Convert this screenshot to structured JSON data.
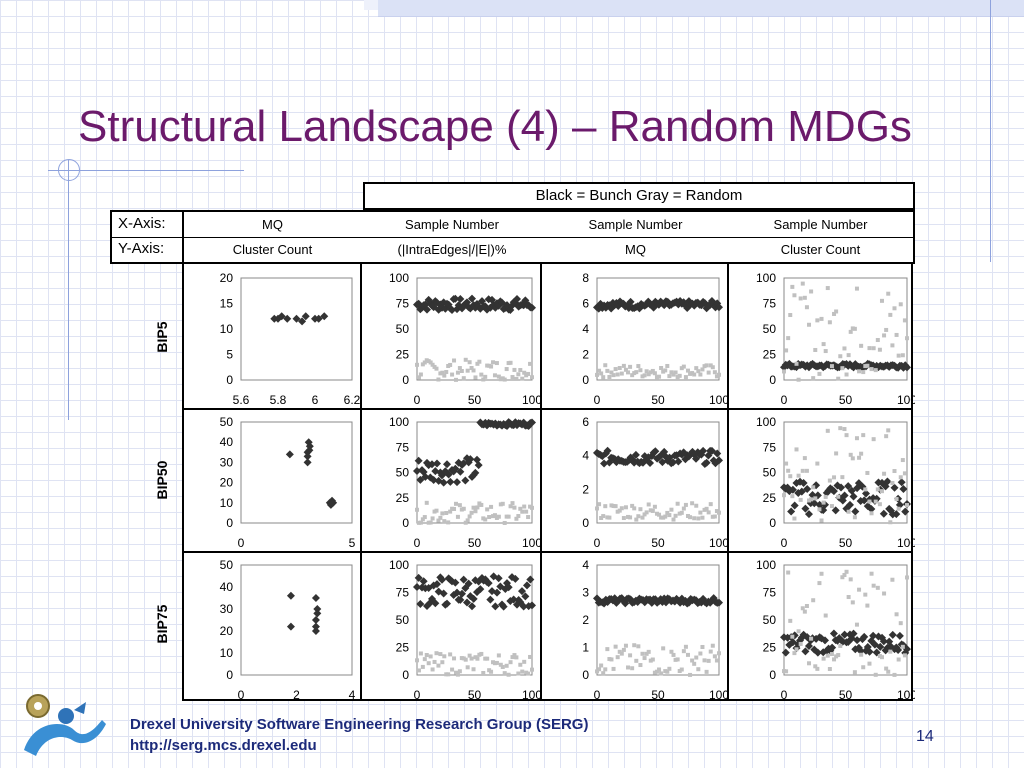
{
  "title": "Structural Landscape (4) – Random MDGs",
  "legend": "Black = Bunch    Gray = Random",
  "axis_table": {
    "x_label": "X-Axis:",
    "y_label": "Y-Axis:",
    "x_values": [
      "MQ",
      "Sample Number",
      "Sample Number",
      "Sample Number"
    ],
    "y_values": [
      "Cluster Count",
      "(|IntraEdges|/|E|)%",
      "MQ",
      "Cluster Count"
    ]
  },
  "row_labels": [
    "BIP5",
    "BIP50",
    "BIP75"
  ],
  "footer": {
    "line1": "Drexel University Software Engineering Research Group (SERG)",
    "line2": "http://serg.mcs.drexel.edu",
    "page": "14"
  },
  "colors": {
    "title": "#6b1a6b",
    "footer": "#1c2a7a",
    "bunch": "#333333",
    "random": "#c0c0c0"
  },
  "chart_data": [
    {
      "type": "scatter",
      "row": "BIP5",
      "col": 0,
      "xlim": [
        5.6,
        6.2
      ],
      "ylim": [
        0,
        20
      ],
      "xticks": [
        "5.6",
        "5.8",
        "6",
        "6.2"
      ],
      "yticks": [
        "20",
        "15",
        "10",
        "5",
        "0"
      ],
      "series": [
        {
          "name": "Bunch",
          "points": [
            [
              5.78,
              12
            ],
            [
              5.8,
              12
            ],
            [
              5.82,
              12.5
            ],
            [
              5.85,
              12
            ],
            [
              5.9,
              12
            ],
            [
              5.93,
              11.5
            ],
            [
              5.95,
              12.5
            ],
            [
              6.0,
              12
            ],
            [
              6.02,
              12
            ],
            [
              6.05,
              12.5
            ]
          ]
        }
      ]
    },
    {
      "type": "scatter",
      "row": "BIP5",
      "col": 1,
      "xlim": [
        0,
        100
      ],
      "ylim": [
        0,
        100
      ],
      "xticks": [
        "0",
        "50",
        "100"
      ],
      "yticks": [
        "100",
        "75",
        "50",
        "25",
        "0"
      ],
      "series": [
        {
          "name": "Bunch",
          "band": [
            68,
            80
          ]
        },
        {
          "name": "Random",
          "band": [
            0,
            20
          ]
        }
      ]
    },
    {
      "type": "scatter",
      "row": "BIP5",
      "col": 2,
      "xlim": [
        0,
        100
      ],
      "ylim": [
        0,
        8
      ],
      "xticks": [
        "0",
        "50",
        "100"
      ],
      "yticks": [
        "8",
        "6",
        "4",
        "2",
        "0"
      ],
      "series": [
        {
          "name": "Bunch",
          "band": [
            5.6,
            6.2
          ]
        },
        {
          "name": "Random",
          "band": [
            0.2,
            1.2
          ]
        }
      ]
    },
    {
      "type": "scatter",
      "row": "BIP5",
      "col": 3,
      "xlim": [
        0,
        100
      ],
      "ylim": [
        0,
        100
      ],
      "xticks": [
        "0",
        "50",
        "100"
      ],
      "yticks": [
        "100",
        "75",
        "50",
        "25",
        "0"
      ],
      "series": [
        {
          "name": "Bunch",
          "band": [
            12,
            16
          ]
        },
        {
          "name": "Random",
          "band": [
            0,
            95
          ]
        }
      ]
    },
    {
      "type": "scatter",
      "row": "BIP50",
      "col": 0,
      "xlim": [
        0,
        5
      ],
      "ylim": [
        0,
        50
      ],
      "xticks": [
        "0",
        "5"
      ],
      "yticks": [
        "50",
        "40",
        "30",
        "20",
        "10",
        "0"
      ],
      "series": [
        {
          "name": "Bunch",
          "points": [
            [
              2.2,
              34
            ],
            [
              3.0,
              30
            ],
            [
              3.0,
              35
            ],
            [
              3.05,
              40
            ],
            [
              3.1,
              38
            ],
            [
              3.0,
              33
            ],
            [
              3.08,
              36
            ],
            [
              4.0,
              10
            ],
            [
              4.1,
              11
            ],
            [
              4.05,
              9
            ],
            [
              4.15,
              10
            ]
          ]
        }
      ]
    },
    {
      "type": "scatter",
      "row": "BIP50",
      "col": 1,
      "xlim": [
        0,
        100
      ],
      "ylim": [
        0,
        100
      ],
      "xticks": [
        "0",
        "50",
        "100"
      ],
      "yticks": [
        "100",
        "75",
        "50",
        "25",
        "0"
      ],
      "series": [
        {
          "name": "Bunch",
          "band": [
            40,
            65
          ],
          "band2": [
            96,
            100
          ]
        },
        {
          "name": "Random",
          "band": [
            0,
            20
          ]
        }
      ]
    },
    {
      "type": "scatter",
      "row": "BIP50",
      "col": 2,
      "xlim": [
        0,
        100
      ],
      "ylim": [
        0,
        6
      ],
      "xticks": [
        "0",
        "50",
        "100"
      ],
      "yticks": [
        "6",
        "4",
        "2",
        "0"
      ],
      "series": [
        {
          "name": "Bunch",
          "band": [
            3.5,
            4.3
          ]
        },
        {
          "name": "Random",
          "band": [
            0.2,
            1.2
          ]
        }
      ]
    },
    {
      "type": "scatter",
      "row": "BIP50",
      "col": 3,
      "xlim": [
        0,
        100
      ],
      "ylim": [
        0,
        100
      ],
      "xticks": [
        "0",
        "50",
        "100"
      ],
      "yticks": [
        "100",
        "75",
        "50",
        "25",
        "0"
      ],
      "series": [
        {
          "name": "Bunch",
          "band": [
            8,
            42
          ]
        },
        {
          "name": "Random",
          "band": [
            0,
            95
          ]
        }
      ]
    },
    {
      "type": "scatter",
      "row": "BIP75",
      "col": 0,
      "xlim": [
        0,
        4
      ],
      "ylim": [
        0,
        50
      ],
      "xticks": [
        "0",
        "2",
        "4"
      ],
      "yticks": [
        "50",
        "40",
        "30",
        "20",
        "10",
        "0"
      ],
      "series": [
        {
          "name": "Bunch",
          "points": [
            [
              1.8,
              36
            ],
            [
              1.8,
              22
            ],
            [
              2.7,
              20
            ],
            [
              2.7,
              25
            ],
            [
              2.75,
              30
            ],
            [
              2.7,
              35
            ],
            [
              2.75,
              28
            ],
            [
              2.7,
              22
            ]
          ]
        }
      ]
    },
    {
      "type": "scatter",
      "row": "BIP75",
      "col": 1,
      "xlim": [
        0,
        100
      ],
      "ylim": [
        0,
        100
      ],
      "xticks": [
        "0",
        "50",
        "100"
      ],
      "yticks": [
        "100",
        "75",
        "50",
        "25",
        "0"
      ],
      "series": [
        {
          "name": "Bunch",
          "band": [
            62,
            90
          ]
        },
        {
          "name": "Random",
          "band": [
            0,
            20
          ]
        }
      ]
    },
    {
      "type": "scatter",
      "row": "BIP75",
      "col": 2,
      "xlim": [
        0,
        100
      ],
      "ylim": [
        0,
        4
      ],
      "xticks": [
        "0",
        "50",
        "100"
      ],
      "yticks": [
        "4",
        "3",
        "2",
        "1",
        "0"
      ],
      "series": [
        {
          "name": "Bunch",
          "band": [
            2.6,
            2.8
          ]
        },
        {
          "name": "Random",
          "band": [
            0,
            1.1
          ]
        }
      ]
    },
    {
      "type": "scatter",
      "row": "BIP75",
      "col": 3,
      "xlim": [
        0,
        100
      ],
      "ylim": [
        0,
        100
      ],
      "xticks": [
        "0",
        "50",
        "100"
      ],
      "yticks": [
        "100",
        "75",
        "50",
        "25",
        "0"
      ],
      "series": [
        {
          "name": "Bunch",
          "band": [
            20,
            38
          ]
        },
        {
          "name": "Random",
          "band": [
            0,
            95
          ]
        }
      ]
    }
  ]
}
